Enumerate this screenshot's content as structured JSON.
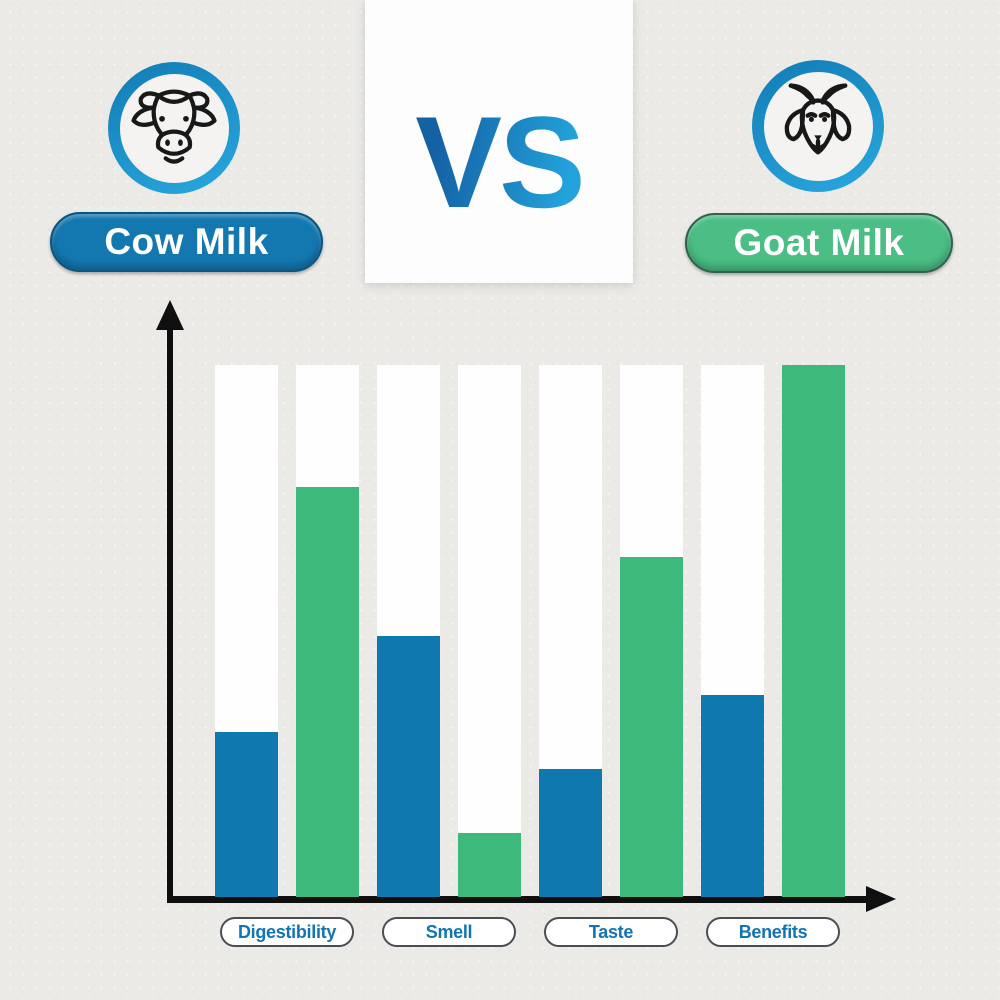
{
  "page": {
    "background": "#ebeae7"
  },
  "header": {
    "versus": "VS",
    "ring_color": "#1b94cf",
    "left": {
      "label": "Cow Milk",
      "icon": "cow-icon",
      "pill_color": "#1478b0"
    },
    "right": {
      "label": "Goat Milk",
      "icon": "goat-icon",
      "pill_color": "#4abe84"
    }
  },
  "chart_data": {
    "type": "bar",
    "categories": [
      "Digestibility",
      "Smell",
      "Taste",
      "Benefits"
    ],
    "series": [
      {
        "name": "Cow Milk",
        "color": "#0f78ae",
        "values": [
          31,
          49,
          24,
          38
        ]
      },
      {
        "name": "Goat Milk",
        "color": "#3dba7b",
        "values": [
          77,
          12,
          64,
          100
        ]
      }
    ],
    "ylim": [
      0,
      100
    ],
    "grid": false,
    "legend_position": "none",
    "track_color": "#fefefe",
    "axis_color": "#0f0f0f",
    "category_label_color": "#1274b2"
  }
}
